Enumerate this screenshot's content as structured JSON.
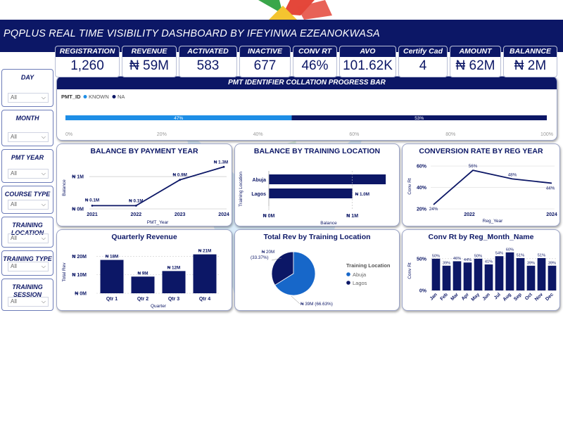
{
  "header": {
    "title": "PQPLUS REAL TIME VISIBILITY DASHBOARD BY IFEYINWA EZEANOKWASA"
  },
  "colors": {
    "navy": "#0c1766",
    "light_blue": "#1e8ee6",
    "mid_blue": "#1767c9"
  },
  "kpis": [
    {
      "label": "REGISTRATION",
      "value": "1,260"
    },
    {
      "label": "REVENUE",
      "value": "₦ 59M"
    },
    {
      "label": "ACTIVATED",
      "value": "583"
    },
    {
      "label": "INACTIVE",
      "value": "677"
    },
    {
      "label": "CONV RT",
      "value": "46%"
    },
    {
      "label": "AVO",
      "value": "101.62K"
    },
    {
      "label": "Certify Cad",
      "value": "4"
    },
    {
      "label": "AMOUNT",
      "value": "₦ 62M"
    },
    {
      "label": "BALANNCE",
      "value": "₦ 2M"
    }
  ],
  "slicers": [
    {
      "label": "DAY",
      "value": "All"
    },
    {
      "label": "MONTH",
      "value": "All"
    },
    {
      "label": "PMT YEAR",
      "value": "All"
    },
    {
      "label": "COURSE TYPE",
      "value": "All"
    },
    {
      "label": "TRAINING LOCATION",
      "value": "All"
    },
    {
      "label": "TRAINING TYPE",
      "value": "All"
    },
    {
      "label": "TRAINING SESSION",
      "value": "All"
    }
  ],
  "chart_data": [
    {
      "type": "bar",
      "title": "PMT IDENTIFIER COLLATION PROGRESS BAR",
      "legend_title": "PMT_ID",
      "series": [
        {
          "name": "KNOWN",
          "value": 47,
          "label": "47%"
        },
        {
          "name": "NA",
          "value": 53,
          "label": "53%"
        }
      ],
      "xticks": [
        "0%",
        "20%",
        "40%",
        "60%",
        "80%",
        "100%"
      ],
      "xlim": [
        0,
        100
      ]
    },
    {
      "type": "line",
      "title": "BALANCE BY PAYMENT YEAR",
      "xlabel": "PMT_Year",
      "ylabel": "Balance",
      "x": [
        "2021",
        "2022",
        "2023",
        "2024"
      ],
      "values": [
        0.1,
        0.1,
        0.9,
        1.3
      ],
      "data_labels": [
        "₦ 0.1M",
        "₦ 0.1M",
        "₦ 0.9M",
        "₦ 1.3M"
      ],
      "yticks": [
        {
          "v": 0,
          "label": "₦ 0M"
        },
        {
          "v": 1,
          "label": "₦ 1M"
        }
      ],
      "ylim": [
        0,
        1.35
      ]
    },
    {
      "type": "bar",
      "orientation": "horizontal",
      "title": "BALANCE BY TRAINING LOCATION",
      "xlabel": "Balance",
      "ylabel": "Training Location",
      "categories": [
        "Abuja",
        "Lagos"
      ],
      "values": [
        1.4,
        1.0
      ],
      "data_labels": [
        "",
        "₦ 1.0M"
      ],
      "xticks": [
        {
          "v": 0,
          "label": "₦ 0M"
        },
        {
          "v": 1,
          "label": "₦ 1M"
        }
      ],
      "xlim": [
        0,
        1.5
      ]
    },
    {
      "type": "line",
      "title": "CONVERSION RATE BY REG YEAR",
      "xlabel": "Reg_Year",
      "ylabel": "Conv Rt",
      "values": [
        24,
        56,
        48,
        44
      ],
      "data_labels": [
        "24%",
        "56%",
        "48%",
        "44%"
      ],
      "xticks": [
        {
          "i": 1,
          "label": "2022"
        },
        {
          "i": 3,
          "label": "2024"
        }
      ],
      "yticks": [
        {
          "v": 20,
          "label": "20%"
        },
        {
          "v": 40,
          "label": "40%"
        },
        {
          "v": 60,
          "label": "60%"
        }
      ],
      "ylim": [
        20,
        62
      ]
    },
    {
      "type": "bar",
      "title": "Quarterly Revenue",
      "xlabel": "Quarter",
      "ylabel": "Total Rev",
      "categories": [
        "Qtr 1",
        "Qtr 2",
        "Qtr 3",
        "Qtr 4"
      ],
      "values": [
        18,
        9,
        12,
        21
      ],
      "data_labels": [
        "₦ 18M",
        "₦ 9M",
        "₦ 12M",
        "₦ 21M"
      ],
      "yticks": [
        {
          "v": 0,
          "label": "₦ 0M"
        },
        {
          "v": 10,
          "label": "₦ 10M"
        },
        {
          "v": 20,
          "label": "₦ 20M"
        }
      ],
      "ylim": [
        0,
        22
      ]
    },
    {
      "type": "pie",
      "title": "Total Rev by Training Location",
      "legend_title": "Training Location",
      "categories": [
        "Abuja",
        "Lagos"
      ],
      "values": [
        39,
        20
      ],
      "data_labels": [
        "₦ 39M (66.63%)",
        "₦ 20M (33.37%)"
      ],
      "colors": [
        "#1767c9",
        "#0c1766"
      ]
    },
    {
      "type": "bar",
      "title": "Conv Rt by Reg_Month_Name",
      "ylabel": "Conv Rt",
      "categories": [
        "Jan",
        "Feb",
        "Mar",
        "Apr",
        "May",
        "Jun",
        "Jul",
        "Aug",
        "Sep",
        "Oct",
        "Nov",
        "Dec"
      ],
      "values": [
        50,
        39,
        46,
        44,
        50,
        41,
        54,
        60,
        51,
        39,
        51,
        39
      ],
      "data_labels": [
        "50%",
        "39%",
        "46%",
        "44%",
        "50%",
        "41%",
        "54%",
        "60%",
        "51%",
        "39%",
        "51%",
        "39%"
      ],
      "yticks": [
        {
          "v": 0,
          "label": "0%"
        },
        {
          "v": 50,
          "label": "50%"
        }
      ],
      "ylim": [
        0,
        62
      ]
    }
  ]
}
